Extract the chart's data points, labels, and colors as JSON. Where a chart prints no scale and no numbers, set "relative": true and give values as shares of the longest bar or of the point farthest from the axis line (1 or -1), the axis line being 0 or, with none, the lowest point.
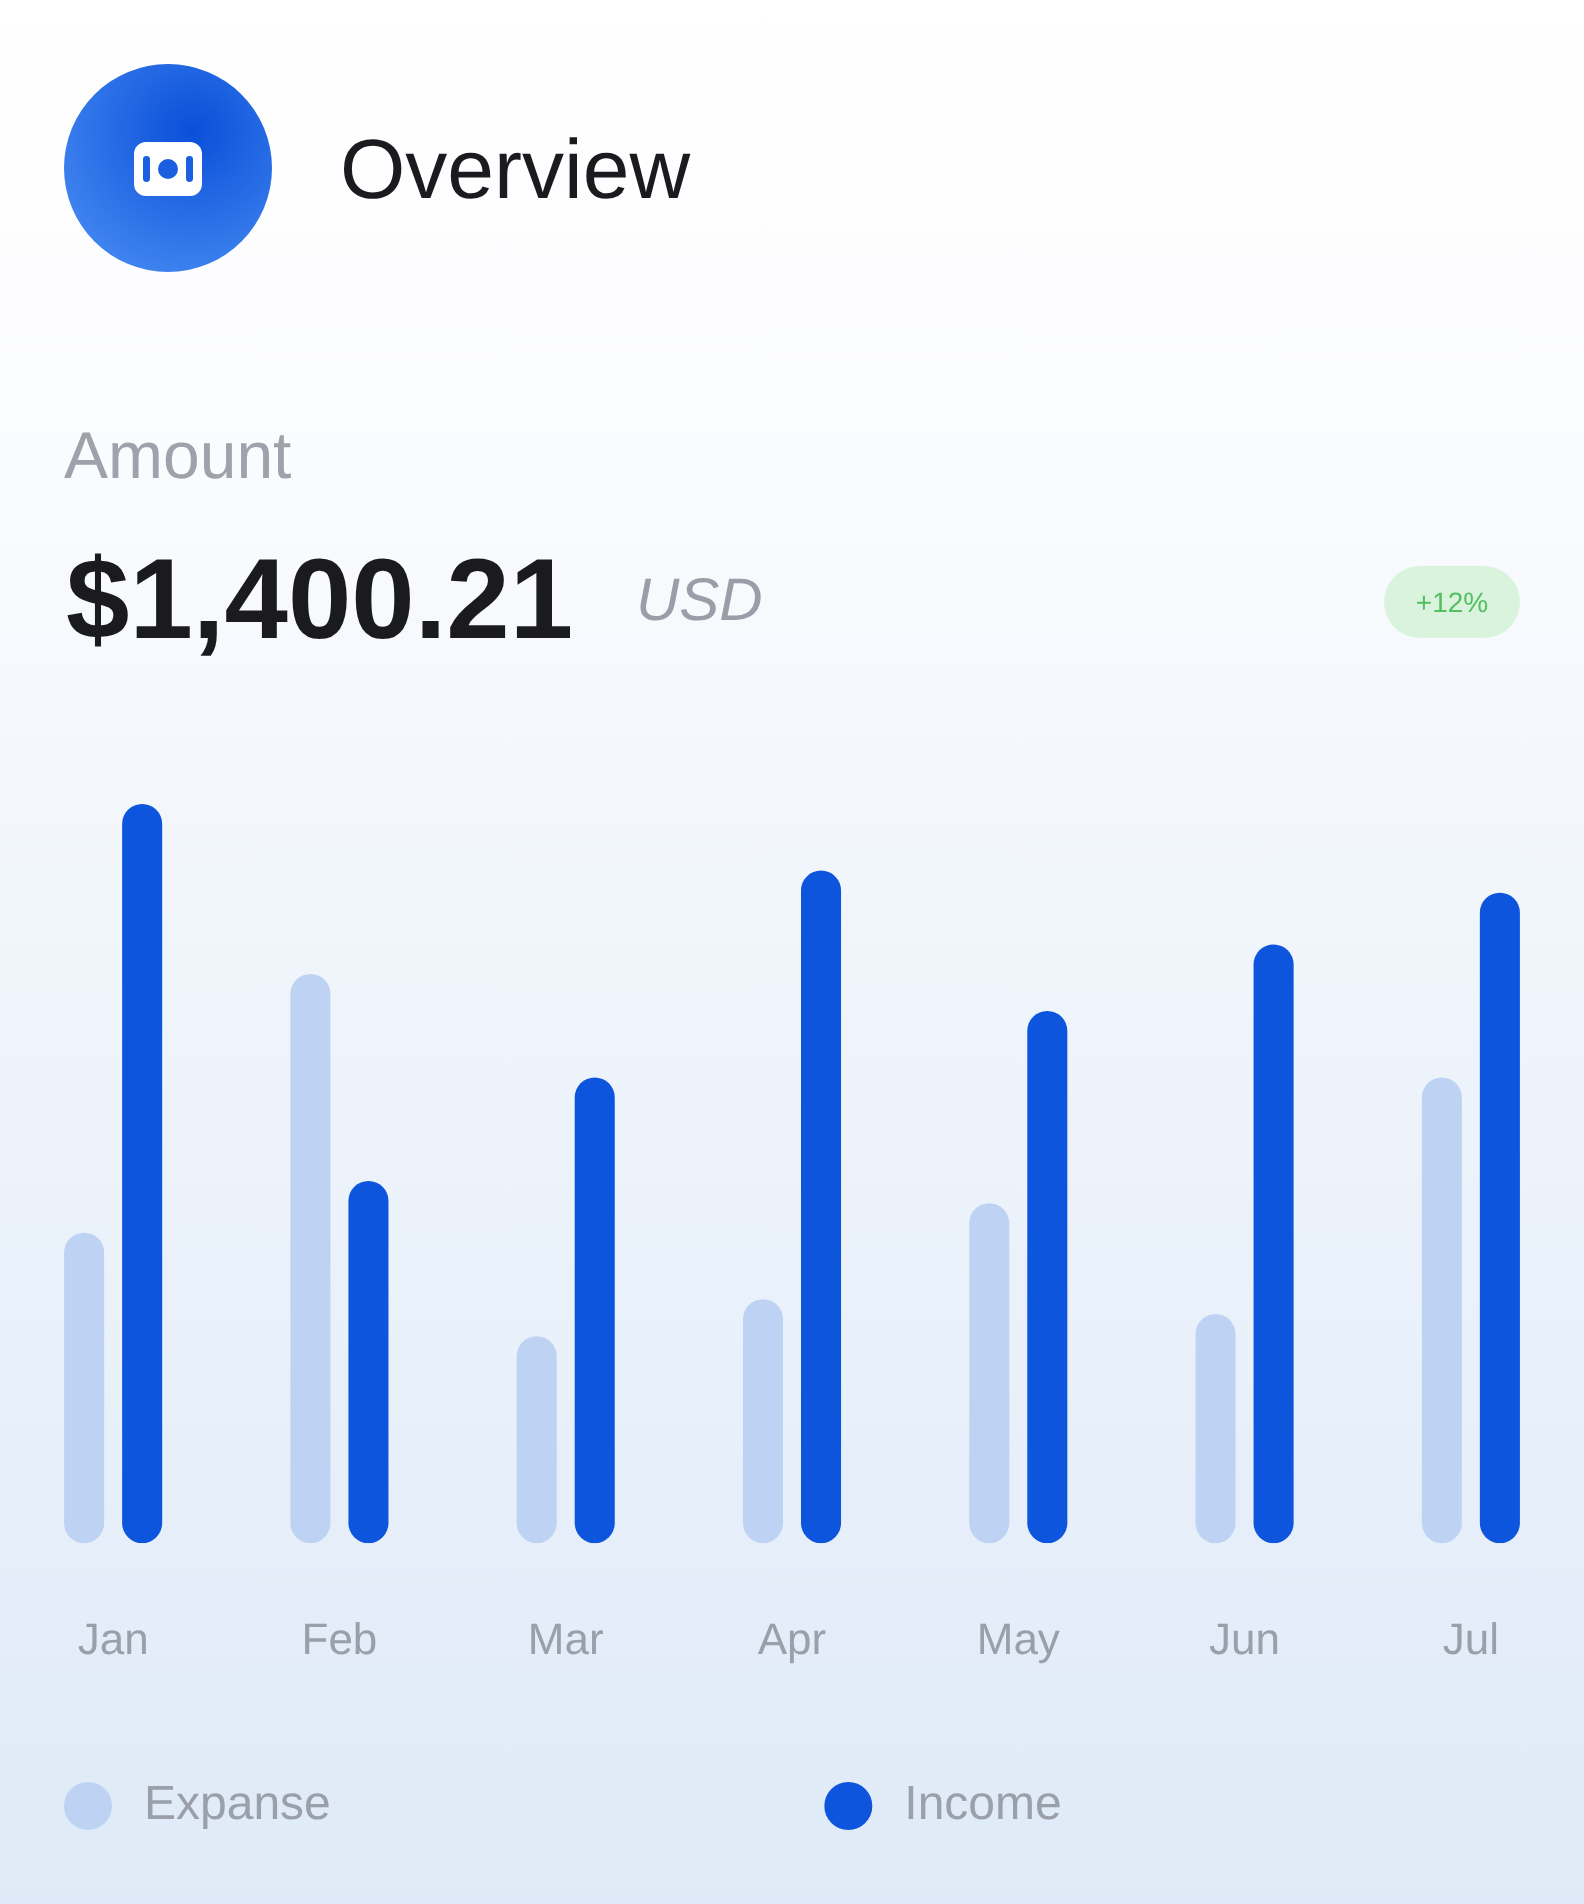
{
  "chart_data": {
    "type": "bar",
    "title": "Overview",
    "subtitle": "Amount",
    "annotations": [
      "$1,400.21",
      "USD",
      "+12%"
    ],
    "categories": [
      "Jan",
      "Feb",
      "Mar",
      "Apr",
      "May",
      "Jun",
      "Jul"
    ],
    "series": [
      {
        "name": "Expanse",
        "color": "#bed3f3",
        "values": [
          0.42,
          0.77,
          0.28,
          0.33,
          0.46,
          0.31,
          0.63
        ]
      },
      {
        "name": "Income",
        "color": "#0d55dd",
        "values": [
          1,
          0.49,
          0.63,
          0.91,
          0.72,
          0.81,
          0.88
        ]
      }
    ],
    "relative": true,
    "legend": "bottom"
  }
}
